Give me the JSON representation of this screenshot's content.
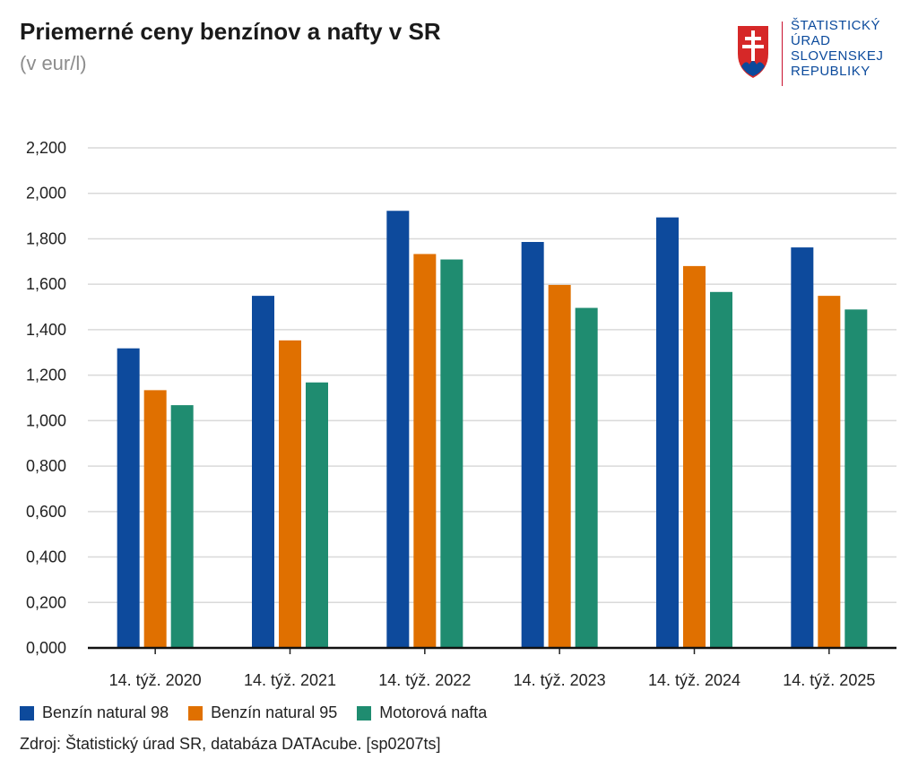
{
  "header": {
    "title": "Priemerné ceny benzínov a nafty v SR",
    "subtitle": "(v eur/l)"
  },
  "logo": {
    "lines": [
      "ŠTATISTICKÝ",
      "ÚRAD",
      "SLOVENSKEJ",
      "REPUBLIKY"
    ]
  },
  "colors": {
    "series": [
      "#0d4a9c",
      "#e07000",
      "#1f8c70"
    ]
  },
  "chart_data": {
    "type": "bar",
    "title": "Priemerné ceny benzínov a nafty v SR",
    "subtitle": "(v eur/l)",
    "categories": [
      "14. týž. 2020",
      "14. týž. 2021",
      "14. týž. 2022",
      "14. týž. 2023",
      "14. týž. 2024",
      "14. týž. 2025"
    ],
    "series": [
      {
        "name": "Benzín natural 98",
        "values": [
          1.318,
          1.549,
          1.923,
          1.786,
          1.894,
          1.762
        ]
      },
      {
        "name": "Benzín natural 95",
        "values": [
          1.134,
          1.353,
          1.733,
          1.597,
          1.68,
          1.549
        ]
      },
      {
        "name": "Motorová nafta",
        "values": [
          1.068,
          1.168,
          1.709,
          1.496,
          1.566,
          1.489
        ]
      }
    ],
    "ylim": [
      0,
      2.2
    ],
    "yticks": [
      "0,000",
      "0,200",
      "0,400",
      "0,600",
      "0,800",
      "1,000",
      "1,200",
      "1,400",
      "1,600",
      "1,800",
      "2,000",
      "2,200"
    ],
    "xlabel": "",
    "ylabel": "",
    "grid": true,
    "legend": "bottom"
  },
  "footer": {
    "source": "Zdroj: Štatistický úrad SR, databáza DATAcube. [sp0207ts]"
  }
}
